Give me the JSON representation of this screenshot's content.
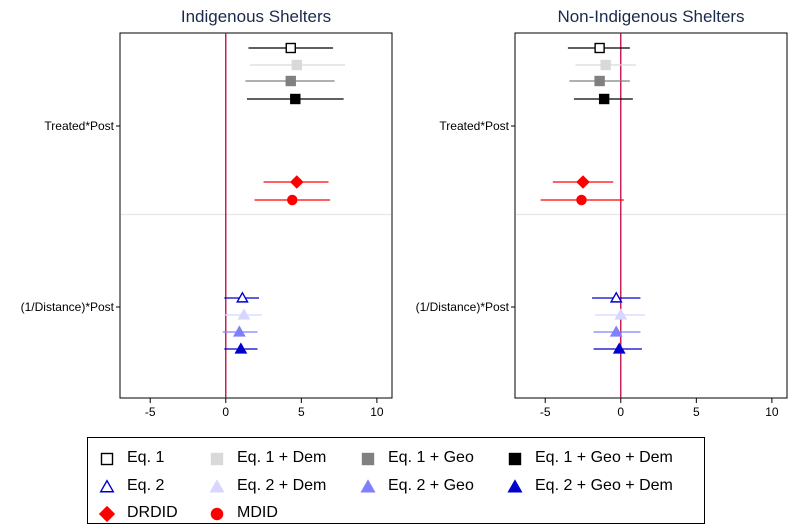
{
  "chart_data": [
    {
      "type": "scatter",
      "title": "Indigenous Shelters",
      "xlim": [
        -7,
        11
      ],
      "xticks": [
        "-5",
        "0",
        "5",
        "10"
      ],
      "xtick_values": [
        -5,
        0,
        5,
        10
      ],
      "reference_line_x": 0,
      "categories": [
        "Treated*Post",
        "(1/Distance)*Post"
      ],
      "series": [
        {
          "name": "Eq. 1",
          "category": "Treated*Post",
          "estimate": 4.3,
          "ci": [
            1.5,
            7.1
          ]
        },
        {
          "name": "Eq. 1 + Dem",
          "category": "Treated*Post",
          "estimate": 4.7,
          "ci": [
            1.6,
            7.9
          ]
        },
        {
          "name": "Eq. 1 + Geo",
          "category": "Treated*Post",
          "estimate": 4.3,
          "ci": [
            1.3,
            7.2
          ]
        },
        {
          "name": "Eq. 1 + Geo + Dem",
          "category": "Treated*Post",
          "estimate": 4.6,
          "ci": [
            1.4,
            7.8
          ]
        },
        {
          "name": "DRDID",
          "category": "Treated*Post",
          "estimate": 4.7,
          "ci": [
            2.5,
            6.8
          ]
        },
        {
          "name": "MDID",
          "category": "Treated*Post",
          "estimate": 4.4,
          "ci": [
            1.9,
            6.9
          ]
        },
        {
          "name": "Eq. 2",
          "category": "(1/Distance)*Post",
          "estimate": 1.1,
          "ci": [
            -0.1,
            2.2
          ]
        },
        {
          "name": "Eq. 2 + Dem",
          "category": "(1/Distance)*Post",
          "estimate": 1.2,
          "ci": [
            -0.1,
            2.4
          ]
        },
        {
          "name": "Eq. 2 + Geo",
          "category": "(1/Distance)*Post",
          "estimate": 0.9,
          "ci": [
            -0.2,
            2.1
          ]
        },
        {
          "name": "Eq. 2 + Geo + Dem",
          "category": "(1/Distance)*Post",
          "estimate": 1.0,
          "ci": [
            -0.1,
            2.1
          ]
        }
      ]
    },
    {
      "type": "scatter",
      "title": "Non-Indigenous Shelters",
      "xlim": [
        -7,
        11
      ],
      "xticks": [
        "-5",
        "0",
        "5",
        "10"
      ],
      "xtick_values": [
        -5,
        0,
        5,
        10
      ],
      "reference_line_x": 0,
      "categories": [
        "Treated*Post",
        "(1/Distance)*Post"
      ],
      "series": [
        {
          "name": "Eq. 1",
          "category": "Treated*Post",
          "estimate": -1.4,
          "ci": [
            -3.5,
            0.6
          ]
        },
        {
          "name": "Eq. 1 + Dem",
          "category": "Treated*Post",
          "estimate": -1.0,
          "ci": [
            -3.0,
            1.0
          ]
        },
        {
          "name": "Eq. 1 + Geo",
          "category": "Treated*Post",
          "estimate": -1.4,
          "ci": [
            -3.4,
            0.6
          ]
        },
        {
          "name": "Eq. 1 + Geo + Dem",
          "category": "Treated*Post",
          "estimate": -1.1,
          "ci": [
            -3.1,
            0.8
          ]
        },
        {
          "name": "DRDID",
          "category": "Treated*Post",
          "estimate": -2.5,
          "ci": [
            -4.5,
            -0.5
          ]
        },
        {
          "name": "MDID",
          "category": "Treated*Post",
          "estimate": -2.6,
          "ci": [
            -5.3,
            0.2
          ]
        },
        {
          "name": "Eq. 2",
          "category": "(1/Distance)*Post",
          "estimate": -0.3,
          "ci": [
            -1.9,
            1.3
          ]
        },
        {
          "name": "Eq. 2 + Dem",
          "category": "(1/Distance)*Post",
          "estimate": 0.0,
          "ci": [
            -1.7,
            1.6
          ]
        },
        {
          "name": "Eq. 2 + Geo",
          "category": "(1/Distance)*Post",
          "estimate": -0.3,
          "ci": [
            -1.8,
            1.3
          ]
        },
        {
          "name": "Eq. 2 + Geo + Dem",
          "category": "(1/Distance)*Post",
          "estimate": -0.1,
          "ci": [
            -1.8,
            1.4
          ]
        }
      ]
    }
  ],
  "legend": {
    "items": [
      {
        "label": "Eq. 1",
        "marker": "square-open",
        "color": "#000000"
      },
      {
        "label": "Eq. 1 + Dem",
        "marker": "square",
        "color": "#d9d9d9"
      },
      {
        "label": "Eq. 1 + Geo",
        "marker": "square",
        "color": "#808080"
      },
      {
        "label": "Eq. 1 + Geo + Dem",
        "marker": "square",
        "color": "#000000"
      },
      {
        "label": "Eq. 2",
        "marker": "triangle-open",
        "color": "#0000cc"
      },
      {
        "label": "Eq. 2 + Dem",
        "marker": "triangle",
        "color": "#d6d6ff"
      },
      {
        "label": "Eq. 2 + Geo",
        "marker": "triangle",
        "color": "#8080ff"
      },
      {
        "label": "Eq. 2 + Geo + Dem",
        "marker": "triangle",
        "color": "#0000cc"
      },
      {
        "label": "DRDID",
        "marker": "diamond",
        "color": "#ff0000"
      },
      {
        "label": "MDID",
        "marker": "circle",
        "color": "#ff0000"
      }
    ]
  },
  "colors": {
    "title": "#1a2a4a",
    "reference_line": "#c00040",
    "separator": "#e6e6e6",
    "eq1": "#000000",
    "eq1_dem": "#d9d9d9",
    "eq1_geo": "#808080",
    "eq1_geo_dem": "#000000",
    "eq2": "#0000cc",
    "eq2_dem": "#d6d6ff",
    "eq2_geo": "#8080ff",
    "eq2_geo_dem": "#0000cc",
    "drdid": "#ff0000",
    "mdid": "#ff0000"
  }
}
